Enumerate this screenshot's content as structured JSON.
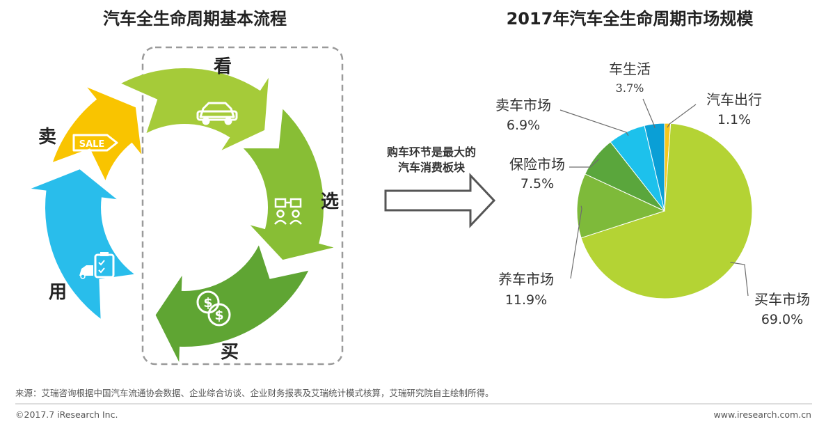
{
  "left_panel": {
    "title": "汽车全生命周期基本流程",
    "stages": [
      {
        "label": "看",
        "icon": "car-icon",
        "color": "#A5CB39"
      },
      {
        "label": "选",
        "icon": "people-compare-icon",
        "color": "#88BE35"
      },
      {
        "label": "买",
        "icon": "money-icon",
        "color": "#5FA533"
      },
      {
        "label": "用",
        "icon": "car-checklist-icon",
        "color": "#29BDEB"
      },
      {
        "label": "卖",
        "icon": "sale-tag-icon",
        "color": "#F9C400"
      }
    ],
    "sale_tag_text": "SALE"
  },
  "arrow_callout": {
    "line1": "购车环节是最大的",
    "line2": "汽车消费板块"
  },
  "chart_data": {
    "type": "pie",
    "title": "2017年汽车全生命周期市场规模",
    "unit": "%",
    "slices": [
      {
        "name": "买车市场",
        "value": 69.0,
        "display": "69.0%",
        "color": "#B4D334"
      },
      {
        "name": "养车市场",
        "value": 11.9,
        "display": "11.9%",
        "color": "#7EBA3A"
      },
      {
        "name": "保险市场",
        "value": 7.5,
        "display": "7.5%",
        "color": "#5AA63C"
      },
      {
        "name": "卖车市场",
        "value": 6.9,
        "display": "6.9%",
        "color": "#1DC1EC"
      },
      {
        "name": "车生活",
        "value": 3.7,
        "display": "3.7%",
        "color": "#0A9FD6"
      },
      {
        "name": "汽车出行",
        "value": 1.1,
        "display": "1.1%",
        "color": "#F6C71B"
      }
    ]
  },
  "footer": {
    "source": "来源：艾瑞咨询根据中国汽车流通协会数据、企业综合访谈、企业财务报表及艾瑞统计模式核算，艾瑞研究院自主绘制所得。",
    "copyright": "©2017.7 iResearch Inc.",
    "website": "www.iresearch.com.cn"
  }
}
